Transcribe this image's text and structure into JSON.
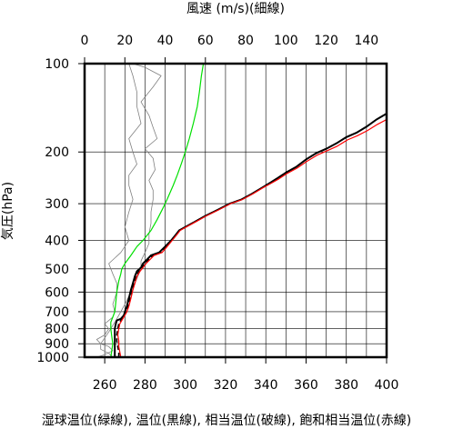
{
  "chart_data": {
    "type": "line",
    "top_axis": {
      "label": "風速 (m/s)(細線)",
      "range": [
        0,
        150
      ],
      "ticks": [
        0,
        20,
        40,
        60,
        80,
        100,
        120,
        140
      ]
    },
    "bottom_axis": {
      "label": "湿球温位(緑線), 温位(黒線), 相当温位(破線), 飽和相当温位(赤線)",
      "range": [
        250,
        400
      ],
      "ticks": [
        260,
        280,
        300,
        320,
        340,
        360,
        380,
        400
      ]
    },
    "left_axis": {
      "label": "気圧(hPa)",
      "scale": "log",
      "range": [
        1000,
        100
      ],
      "ticks": [
        100,
        200,
        300,
        400,
        500,
        600,
        700,
        800,
        900,
        1000
      ]
    },
    "grid": true,
    "colors": {
      "wind": "#808080",
      "wet_bulb": "#00e000",
      "potential": "#000000",
      "equivalent": "#000000",
      "saturated": "#ff0000"
    },
    "series": [
      {
        "key": "wind",
        "axis": "top",
        "style": "thin",
        "points": [
          [
            6,
            1000
          ],
          [
            10,
            980
          ],
          [
            14,
            950
          ],
          [
            12,
            920
          ],
          [
            8,
            900
          ],
          [
            10,
            860
          ],
          [
            12,
            820
          ],
          [
            14,
            780
          ],
          [
            16,
            740
          ],
          [
            18,
            700
          ],
          [
            20,
            660
          ],
          [
            22,
            620
          ],
          [
            24,
            580
          ],
          [
            26,
            540
          ],
          [
            28,
            500
          ],
          [
            28,
            470
          ],
          [
            30,
            440
          ],
          [
            32,
            410
          ],
          [
            32,
            380
          ],
          [
            33,
            350
          ],
          [
            33,
            320
          ],
          [
            34,
            290
          ],
          [
            34,
            270
          ],
          [
            32,
            250
          ],
          [
            35,
            230
          ],
          [
            34,
            210
          ],
          [
            30,
            195
          ],
          [
            36,
            180
          ],
          [
            34,
            165
          ],
          [
            32,
            150
          ],
          [
            28,
            135
          ],
          [
            34,
            120
          ],
          [
            38,
            110
          ],
          [
            30,
            103
          ],
          [
            24,
            100
          ]
        ]
      },
      {
        "key": "wind",
        "axis": "top",
        "style": "thin",
        "points": [
          [
            14,
            1000
          ],
          [
            12,
            970
          ],
          [
            8,
            940
          ],
          [
            8,
            900
          ],
          [
            6,
            870
          ],
          [
            10,
            840
          ],
          [
            12,
            800
          ],
          [
            10,
            770
          ],
          [
            14,
            730
          ],
          [
            15,
            700
          ],
          [
            14,
            660
          ],
          [
            16,
            600
          ],
          [
            16,
            560
          ],
          [
            14,
            520
          ],
          [
            12,
            480
          ],
          [
            18,
            440
          ],
          [
            22,
            400
          ],
          [
            20,
            360
          ],
          [
            22,
            320
          ],
          [
            24,
            290
          ],
          [
            22,
            260
          ],
          [
            22,
            240
          ],
          [
            26,
            220
          ],
          [
            24,
            200
          ],
          [
            22,
            180
          ],
          [
            28,
            160
          ],
          [
            26,
            140
          ],
          [
            26,
            125
          ],
          [
            24,
            110
          ],
          [
            22,
            100
          ]
        ]
      },
      {
        "key": "wet_bulb",
        "axis": "bottom",
        "points": [
          [
            263,
            1000
          ],
          [
            263.5,
            950
          ],
          [
            264,
            900
          ],
          [
            263.5,
            850
          ],
          [
            263,
            800
          ],
          [
            263,
            760
          ],
          [
            264,
            730
          ],
          [
            265,
            700
          ],
          [
            265.5,
            650
          ],
          [
            266,
            600
          ],
          [
            267,
            550
          ],
          [
            268,
            520
          ],
          [
            268.5,
            500
          ],
          [
            270,
            480
          ],
          [
            273,
            450
          ],
          [
            276,
            420
          ],
          [
            279,
            400
          ],
          [
            283,
            370
          ],
          [
            286,
            340
          ],
          [
            289,
            310
          ],
          [
            291,
            290
          ],
          [
            294,
            260
          ],
          [
            296,
            240
          ],
          [
            298,
            220
          ],
          [
            300,
            200
          ],
          [
            302,
            180
          ],
          [
            304,
            160
          ],
          [
            306,
            140
          ],
          [
            307,
            125
          ],
          [
            308,
            110
          ],
          [
            309,
            100
          ]
        ]
      },
      {
        "key": "potential",
        "axis": "bottom",
        "points": [
          [
            265,
            1000
          ],
          [
            265,
            950
          ],
          [
            265,
            900
          ],
          [
            265,
            850
          ],
          [
            265,
            800
          ],
          [
            265.5,
            770
          ],
          [
            266,
            750
          ],
          [
            268,
            740
          ],
          [
            269.5,
            720
          ],
          [
            270,
            700
          ],
          [
            271,
            670
          ],
          [
            272,
            630
          ],
          [
            273,
            590
          ],
          [
            274,
            560
          ],
          [
            275,
            530
          ],
          [
            276,
            510
          ],
          [
            278,
            495
          ],
          [
            279,
            480
          ],
          [
            281,
            465
          ],
          [
            283,
            450
          ],
          [
            287,
            440
          ],
          [
            290,
            420
          ],
          [
            293,
            400
          ],
          [
            295,
            385
          ],
          [
            297,
            370
          ],
          [
            300,
            360
          ],
          [
            305,
            345
          ],
          [
            310,
            330
          ],
          [
            316,
            315
          ],
          [
            322,
            300
          ],
          [
            328,
            290
          ],
          [
            333,
            278
          ],
          [
            338,
            265
          ],
          [
            342,
            255
          ],
          [
            346,
            245
          ],
          [
            350,
            235
          ],
          [
            355,
            225
          ],
          [
            360,
            212
          ],
          [
            365,
            202
          ],
          [
            370,
            195
          ],
          [
            375,
            187
          ],
          [
            380,
            178
          ],
          [
            385,
            172
          ],
          [
            390,
            164
          ],
          [
            395,
            155
          ],
          [
            400,
            148
          ]
        ]
      },
      {
        "key": "equivalent",
        "axis": "bottom",
        "style": "dashed",
        "points": [
          [
            267,
            1000
          ],
          [
            267,
            960
          ],
          [
            266.5,
            920
          ],
          [
            266,
            880
          ],
          [
            266,
            840
          ],
          [
            266.5,
            800
          ],
          [
            267,
            770
          ],
          [
            268,
            750
          ],
          [
            269.5,
            720
          ],
          [
            270.5,
            700
          ],
          [
            271.5,
            670
          ],
          [
            272.5,
            630
          ],
          [
            273.5,
            590
          ],
          [
            274.5,
            560
          ],
          [
            275.5,
            530
          ],
          [
            277,
            510
          ],
          [
            278.5,
            495
          ],
          [
            280,
            480
          ],
          [
            282,
            465
          ],
          [
            284,
            450
          ],
          [
            288,
            440
          ],
          [
            290.5,
            420
          ],
          [
            293,
            400
          ],
          [
            295,
            385
          ],
          [
            297,
            370
          ],
          [
            300,
            360
          ],
          [
            305,
            345
          ],
          [
            310,
            330
          ],
          [
            316,
            315
          ],
          [
            322,
            300
          ],
          [
            328,
            290
          ],
          [
            333,
            278
          ],
          [
            338,
            265
          ],
          [
            342,
            255
          ],
          [
            346,
            245
          ],
          [
            350,
            235
          ],
          [
            355,
            225
          ],
          [
            360,
            212
          ],
          [
            365,
            202
          ],
          [
            370,
            195
          ],
          [
            375,
            187
          ],
          [
            380,
            178
          ],
          [
            385,
            172
          ],
          [
            390,
            164
          ],
          [
            395,
            155
          ],
          [
            400,
            148
          ]
        ]
      },
      {
        "key": "saturated",
        "axis": "bottom",
        "points": [
          [
            268,
            1000
          ],
          [
            267.5,
            960
          ],
          [
            267,
            920
          ],
          [
            267,
            880
          ],
          [
            266.5,
            840
          ],
          [
            267,
            800
          ],
          [
            267.5,
            770
          ],
          [
            268.5,
            750
          ],
          [
            270,
            720
          ],
          [
            271,
            700
          ],
          [
            272,
            670
          ],
          [
            273,
            630
          ],
          [
            274,
            590
          ],
          [
            275,
            560
          ],
          [
            276,
            530
          ],
          [
            277.5,
            510
          ],
          [
            279,
            495
          ],
          [
            280.5,
            480
          ],
          [
            282.5,
            465
          ],
          [
            284.5,
            450
          ],
          [
            288.5,
            440
          ],
          [
            291,
            420
          ],
          [
            293.5,
            400
          ],
          [
            295.5,
            385
          ],
          [
            297.5,
            370
          ],
          [
            300.5,
            360
          ],
          [
            305.5,
            345
          ],
          [
            310.5,
            330
          ],
          [
            316.5,
            315
          ],
          [
            322.5,
            300
          ],
          [
            328.5,
            290
          ],
          [
            333.5,
            278
          ],
          [
            338.5,
            265
          ],
          [
            342.5,
            256
          ],
          [
            346.5,
            247
          ],
          [
            350.5,
            237
          ],
          [
            355.5,
            227
          ],
          [
            360.5,
            215
          ],
          [
            365.5,
            205
          ],
          [
            370.5,
            198
          ],
          [
            375.5,
            191
          ],
          [
            380.5,
            182
          ],
          [
            385.5,
            176
          ],
          [
            390.5,
            169
          ],
          [
            395.5,
            161
          ],
          [
            400,
            155
          ]
        ]
      }
    ]
  }
}
